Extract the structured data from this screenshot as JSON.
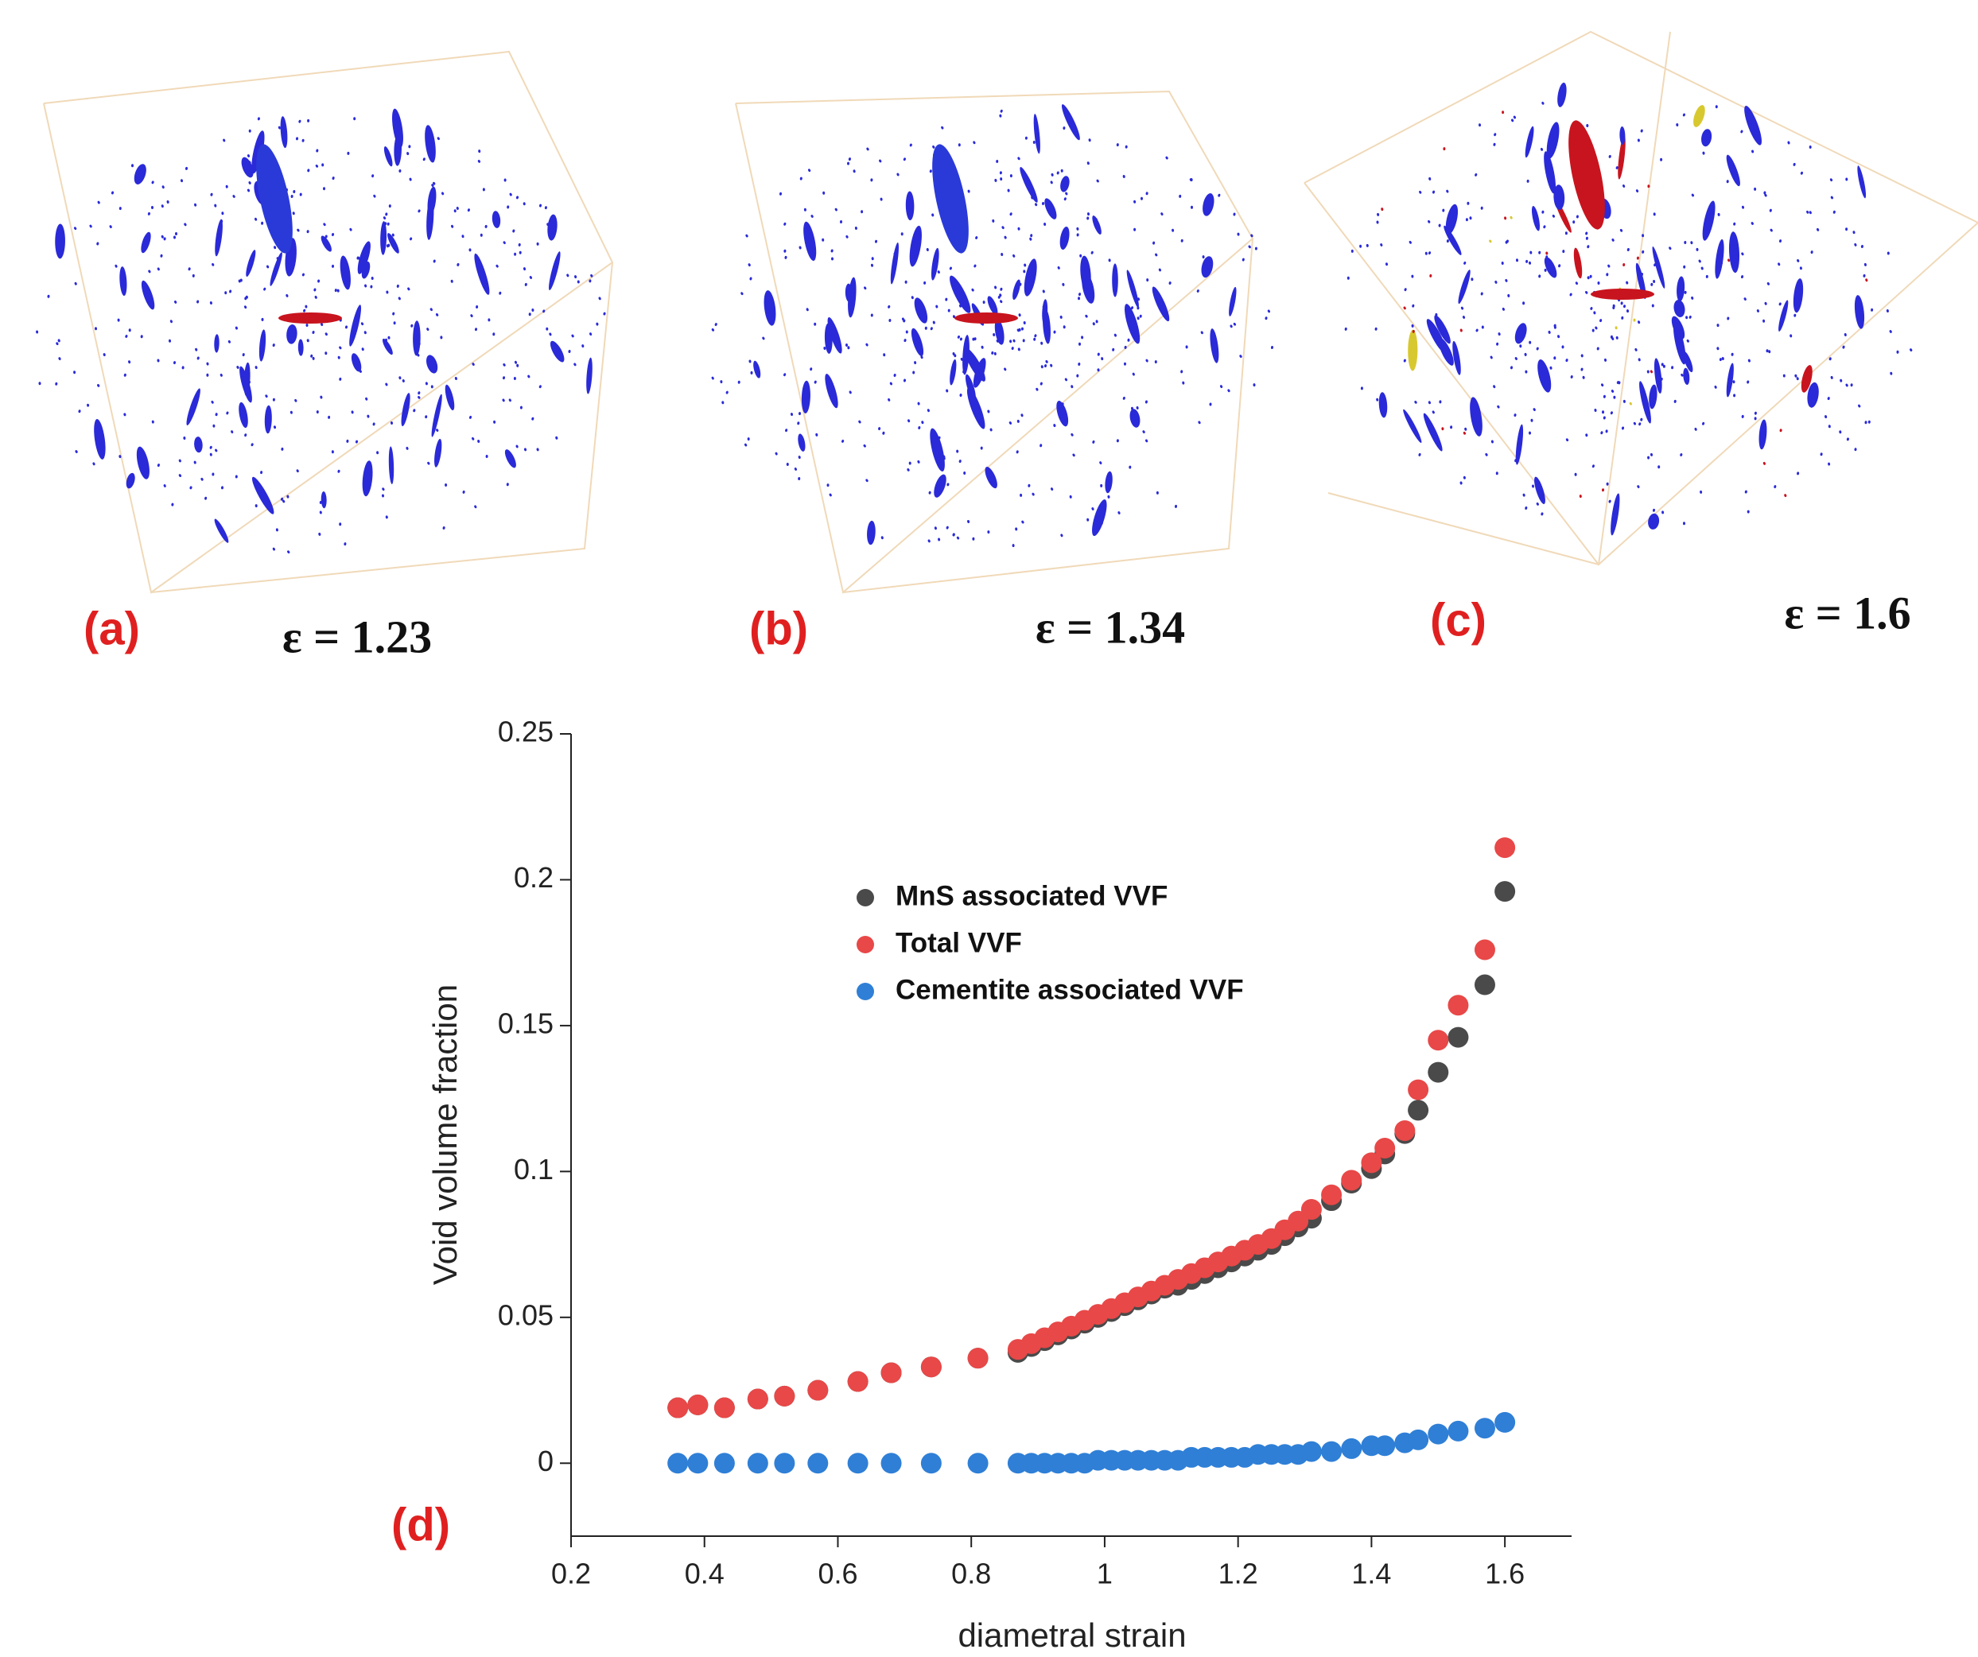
{
  "panels": [
    {
      "label": "(a)",
      "caption": "ε = 1.23"
    },
    {
      "label": "(b)",
      "caption": "ε = 1.34"
    },
    {
      "label": "(c)",
      "caption": "ε = 1.6"
    }
  ],
  "chart_label": "(d)",
  "chart_data": {
    "type": "scatter",
    "xlabel": "diametral strain",
    "ylabel": "Void volume fraction",
    "x": [
      0.36,
      0.39,
      0.43,
      0.48,
      0.52,
      0.57,
      0.63,
      0.68,
      0.74,
      0.81,
      0.87,
      0.89,
      0.91,
      0.93,
      0.95,
      0.97,
      0.99,
      1.01,
      1.03,
      1.05,
      1.07,
      1.09,
      1.11,
      1.13,
      1.15,
      1.17,
      1.19,
      1.21,
      1.23,
      1.25,
      1.27,
      1.29,
      1.31,
      1.34,
      1.37,
      1.4,
      1.42,
      1.45,
      1.47,
      1.5,
      1.53,
      1.57,
      1.6
    ],
    "series": [
      {
        "name": "MnS associated VVF",
        "color": "#4a4a4a",
        "values": [
          0.019,
          0.02,
          0.019,
          0.022,
          0.023,
          0.025,
          0.028,
          0.031,
          0.033,
          0.036,
          0.038,
          0.04,
          0.042,
          0.044,
          0.046,
          0.048,
          0.05,
          0.052,
          0.054,
          0.056,
          0.058,
          0.06,
          0.061,
          0.063,
          0.065,
          0.067,
          0.069,
          0.071,
          0.073,
          0.075,
          0.078,
          0.081,
          0.084,
          0.09,
          0.096,
          0.101,
          0.106,
          0.113,
          0.121,
          0.134,
          0.146,
          0.164,
          0.196
        ]
      },
      {
        "name": "Total VVF",
        "color": "#e84848",
        "values": [
          0.019,
          0.02,
          0.019,
          0.022,
          0.023,
          0.025,
          0.028,
          0.031,
          0.033,
          0.036,
          0.039,
          0.041,
          0.043,
          0.045,
          0.047,
          0.049,
          0.051,
          0.053,
          0.055,
          0.057,
          0.059,
          0.061,
          0.063,
          0.065,
          0.067,
          0.069,
          0.071,
          0.073,
          0.075,
          0.077,
          0.08,
          0.083,
          0.087,
          0.092,
          0.097,
          0.103,
          0.108,
          0.114,
          0.128,
          0.145,
          0.157,
          0.176,
          0.211
        ]
      },
      {
        "name": "Cementite associated VVF",
        "color": "#2f7fd6",
        "values": [
          0,
          0,
          0,
          0,
          0,
          0,
          0,
          0,
          0,
          0,
          0,
          0,
          0,
          0,
          0,
          0,
          0.001,
          0.001,
          0.001,
          0.001,
          0.001,
          0.001,
          0.001,
          0.002,
          0.002,
          0.002,
          0.002,
          0.002,
          0.003,
          0.003,
          0.003,
          0.003,
          0.004,
          0.004,
          0.005,
          0.006,
          0.006,
          0.007,
          0.008,
          0.01,
          0.011,
          0.012,
          0.014
        ]
      }
    ],
    "xlim": [
      0.2,
      1.7
    ],
    "ylim": [
      -0.025,
      0.25
    ],
    "xticks": [
      0.2,
      0.4,
      0.6,
      0.8,
      1,
      1.2,
      1.4,
      1.6
    ],
    "yticks": [
      0,
      0.05,
      0.1,
      0.15,
      0.2,
      0.25
    ]
  }
}
